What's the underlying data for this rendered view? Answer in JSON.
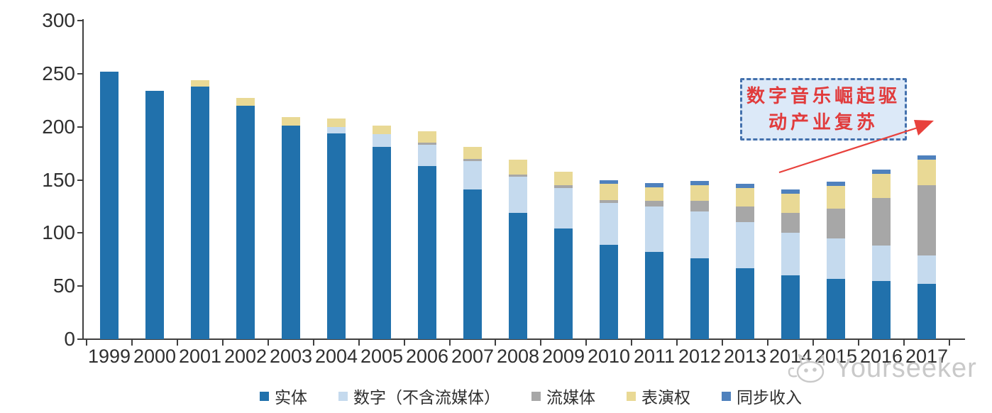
{
  "chart_data": {
    "type": "bar",
    "stacked": true,
    "title": "",
    "xlabel": "",
    "ylabel": "",
    "ylim": [
      0,
      300
    ],
    "yticks": [
      0,
      50,
      100,
      150,
      200,
      250,
      300
    ],
    "grid": false,
    "legend_position": "bottom",
    "categories": [
      "1999",
      "2000",
      "2001",
      "2002",
      "2003",
      "2004",
      "2005",
      "2006",
      "2007",
      "2008",
      "2009",
      "2010",
      "2011",
      "2012",
      "2013",
      "2014",
      "2015",
      "2016",
      "2017"
    ],
    "series": [
      {
        "name": "实体",
        "color": "#2171ac",
        "values": [
          252,
          234,
          238,
          220,
          201,
          194,
          181,
          163,
          141,
          119,
          104,
          89,
          82,
          76,
          67,
          60,
          57,
          55,
          52
        ]
      },
      {
        "name": "数字（不含流媒体）",
        "color": "#c5daee",
        "values": [
          0,
          0,
          0,
          0,
          0,
          6,
          12,
          20,
          27,
          34,
          38,
          39,
          43,
          44,
          43,
          40,
          38,
          33,
          27
        ]
      },
      {
        "name": "流媒体",
        "color": "#a7a7a7",
        "values": [
          0,
          0,
          0,
          0,
          0,
          0,
          0,
          2,
          2,
          2,
          3,
          3,
          5,
          10,
          15,
          19,
          28,
          45,
          66
        ]
      },
      {
        "name": "表演权",
        "color": "#e9d995",
        "values": [
          0,
          0,
          6,
          7,
          8,
          8,
          8,
          11,
          11,
          14,
          13,
          15,
          13,
          15,
          17,
          18,
          21,
          23,
          24
        ]
      },
      {
        "name": "同步收入",
        "color": "#4f81bd",
        "values": [
          0,
          0,
          0,
          0,
          0,
          0,
          0,
          0,
          0,
          0,
          0,
          4,
          4,
          4,
          4,
          4,
          4,
          4,
          4
        ]
      }
    ],
    "totals": [
      252,
      234,
      244,
      227,
      209,
      208,
      201,
      196,
      181,
      169,
      158,
      150,
      147,
      149,
      146,
      141,
      148,
      160,
      173
    ]
  },
  "annotation": {
    "line1": "数字音乐崛起驱",
    "line2": "动产业复苏",
    "text_color": "#e13b3c",
    "border_color": "#4471ad",
    "fill_color": "#dce9f8",
    "arrow_color": "#e8413c"
  },
  "watermark": {
    "label": "Yourseeker",
    "icon": "cat-logo-icon",
    "color": "#c9c9c9"
  }
}
